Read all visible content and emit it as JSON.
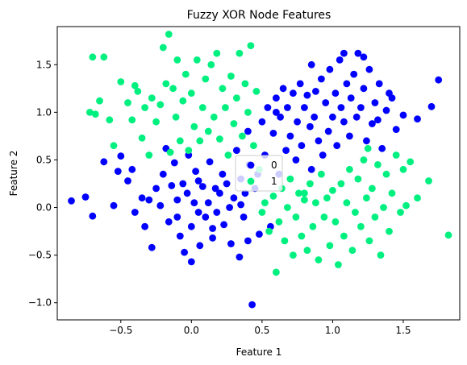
{
  "chart_data": {
    "type": "scatter",
    "title": "Fuzzy XOR Node Features",
    "xlabel": "Feature 1",
    "ylabel": "Feature 2",
    "xlim": [
      -0.95,
      1.9
    ],
    "ylim": [
      -1.18,
      1.9
    ],
    "xticks": [
      -0.5,
      0.0,
      0.5,
      1.0,
      1.5
    ],
    "xtick_labels": [
      "−0.5",
      "0.0",
      "0.5",
      "1.0",
      "1.5"
    ],
    "yticks": [
      -1.0,
      -0.5,
      0.0,
      0.5,
      1.0,
      1.5
    ],
    "ytick_labels": [
      "−1.0",
      "−0.5",
      "0.0",
      "0.5",
      "1.0",
      "1.5"
    ],
    "grid": false,
    "legend_position": "center",
    "series": [
      {
        "name": "0",
        "color": "#0000ff",
        "points": [
          [
            -0.85,
            0.07
          ],
          [
            -0.75,
            0.11
          ],
          [
            -0.7,
            -0.09
          ],
          [
            -0.62,
            0.48
          ],
          [
            -0.55,
            0.02
          ],
          [
            -0.52,
            0.38
          ],
          [
            -0.5,
            0.54
          ],
          [
            -0.45,
            0.28
          ],
          [
            -0.42,
            0.4
          ],
          [
            -0.4,
            -0.05
          ],
          [
            -0.35,
            0.1
          ],
          [
            -0.33,
            -0.2
          ],
          [
            -0.3,
            0.08
          ],
          [
            -0.28,
            -0.42
          ],
          [
            -0.25,
            0.2
          ],
          [
            -0.22,
            0.02
          ],
          [
            -0.2,
            0.35
          ],
          [
            -0.18,
            0.62
          ],
          [
            -0.16,
            -0.15
          ],
          [
            -0.14,
            0.23
          ],
          [
            -0.12,
            0.47
          ],
          [
            -0.1,
            0.08
          ],
          [
            -0.08,
            -0.3
          ],
          [
            -0.06,
            0.25
          ],
          [
            -0.05,
            -0.47
          ],
          [
            -0.03,
            0.15
          ],
          [
            -0.02,
            0.55
          ],
          [
            0.0,
            -0.2
          ],
          [
            0.0,
            -0.57
          ],
          [
            0.02,
            0.05
          ],
          [
            0.03,
            0.38
          ],
          [
            0.05,
            -0.05
          ],
          [
            0.06,
            -0.4
          ],
          [
            0.08,
            0.22
          ],
          [
            0.1,
            -0.1
          ],
          [
            0.12,
            0.05
          ],
          [
            0.13,
            0.48
          ],
          [
            0.15,
            -0.32
          ],
          [
            0.17,
            0.2
          ],
          [
            0.18,
            -0.05
          ],
          [
            0.2,
            0.15
          ],
          [
            0.22,
            0.35
          ],
          [
            0.23,
            -0.18
          ],
          [
            0.25,
            0.25
          ],
          [
            0.27,
            0.0
          ],
          [
            0.28,
            -0.38
          ],
          [
            0.3,
            0.1
          ],
          [
            0.32,
            0.6
          ],
          [
            0.34,
            -0.52
          ],
          [
            0.35,
            0.3
          ],
          [
            0.37,
            -0.1
          ],
          [
            0.38,
            0.15
          ],
          [
            0.4,
            -0.35
          ],
          [
            0.41,
            0.45
          ],
          [
            0.43,
            -1.02
          ],
          [
            0.45,
            0.2
          ],
          [
            0.47,
            0.35
          ],
          [
            0.48,
            -0.28
          ],
          [
            0.5,
            0.9
          ],
          [
            0.52,
            0.55
          ],
          [
            0.54,
            1.05
          ],
          [
            0.56,
            -0.2
          ],
          [
            0.58,
            0.78
          ],
          [
            0.6,
            1.15
          ],
          [
            0.62,
            0.35
          ],
          [
            0.63,
            0.95
          ],
          [
            0.65,
            1.25
          ],
          [
            0.67,
            0.6
          ],
          [
            0.68,
            1.05
          ],
          [
            0.7,
            0.75
          ],
          [
            0.72,
            1.2
          ],
          [
            0.74,
            0.5
          ],
          [
            0.75,
            0.9
          ],
          [
            0.77,
            1.3
          ],
          [
            0.78,
            0.65
          ],
          [
            0.8,
            1.05
          ],
          [
            0.82,
            1.18
          ],
          [
            0.84,
            0.85
          ],
          [
            0.85,
            0.4
          ],
          [
            0.87,
            0.95
          ],
          [
            0.88,
            1.22
          ],
          [
            0.9,
            0.7
          ],
          [
            0.92,
            1.35
          ],
          [
            0.93,
            0.55
          ],
          [
            0.95,
            1.1
          ],
          [
            0.97,
            0.8
          ],
          [
            0.98,
            1.45
          ],
          [
            1.0,
            0.95
          ],
          [
            1.02,
            1.2
          ],
          [
            1.03,
            0.65
          ],
          [
            1.05,
            1.55
          ],
          [
            1.06,
            1.05
          ],
          [
            1.08,
            0.9
          ],
          [
            1.1,
            1.3
          ],
          [
            1.12,
            0.75
          ],
          [
            1.13,
            1.15
          ],
          [
            1.15,
            1.4
          ],
          [
            1.17,
            0.95
          ],
          [
            1.18,
            1.62
          ],
          [
            1.2,
            1.05
          ],
          [
            1.22,
            1.25
          ],
          [
            1.24,
            0.7
          ],
          [
            1.26,
            1.45
          ],
          [
            1.28,
            0.88
          ],
          [
            1.3,
            1.1
          ],
          [
            1.33,
            1.3
          ],
          [
            1.35,
            0.62
          ],
          [
            1.38,
            1.02
          ],
          [
            1.42,
            1.15
          ],
          [
            1.45,
            0.82
          ],
          [
            1.5,
            0.97
          ],
          [
            1.6,
            0.93
          ],
          [
            1.7,
            1.06
          ],
          [
            1.75,
            1.34
          ],
          [
            1.4,
            1.2
          ],
          [
            1.08,
            1.62
          ],
          [
            1.22,
            1.58
          ],
          [
            1.32,
            0.92
          ],
          [
            0.85,
            1.5
          ],
          [
            0.6,
            1.0
          ],
          [
            0.4,
            0.8
          ],
          [
            0.35,
            0.03
          ],
          [
            0.15,
            -0.22
          ],
          [
            -0.1,
            -0.1
          ],
          [
            0.05,
            0.28
          ]
        ]
      },
      {
        "name": "1",
        "color": "#00f080",
        "points": [
          [
            -0.72,
            1.0
          ],
          [
            -0.7,
            1.58
          ],
          [
            -0.68,
            0.98
          ],
          [
            -0.65,
            1.12
          ],
          [
            -0.62,
            1.58
          ],
          [
            -0.58,
            0.92
          ],
          [
            -0.55,
            0.65
          ],
          [
            -0.5,
            1.32
          ],
          [
            -0.45,
            1.1
          ],
          [
            -0.42,
            0.92
          ],
          [
            -0.4,
            1.28
          ],
          [
            -0.38,
            1.22
          ],
          [
            -0.35,
            0.73
          ],
          [
            -0.33,
            1.05
          ],
          [
            -0.3,
            0.55
          ],
          [
            -0.28,
            1.15
          ],
          [
            -0.25,
            0.9
          ],
          [
            -0.22,
            1.08
          ],
          [
            -0.2,
            1.68
          ],
          [
            -0.18,
            1.3
          ],
          [
            -0.16,
            1.82
          ],
          [
            -0.15,
            0.58
          ],
          [
            -0.13,
            1.25
          ],
          [
            -0.11,
            0.95
          ],
          [
            -0.1,
            1.55
          ],
          [
            -0.08,
            0.7
          ],
          [
            -0.06,
            1.12
          ],
          [
            -0.04,
            1.4
          ],
          [
            -0.02,
            0.6
          ],
          [
            0.0,
            1.2
          ],
          [
            0.02,
            0.85
          ],
          [
            0.04,
            1.55
          ],
          [
            0.06,
            0.7
          ],
          [
            0.08,
            1.05
          ],
          [
            0.1,
            1.35
          ],
          [
            0.12,
            0.8
          ],
          [
            0.14,
            1.5
          ],
          [
            0.16,
            0.95
          ],
          [
            0.18,
            1.62
          ],
          [
            0.2,
            0.72
          ],
          [
            0.22,
            1.25
          ],
          [
            0.24,
            1.05
          ],
          [
            0.26,
            0.55
          ],
          [
            0.28,
            1.38
          ],
          [
            0.3,
            0.88
          ],
          [
            0.32,
            1.15
          ],
          [
            0.34,
            1.62
          ],
          [
            0.36,
            0.75
          ],
          [
            0.38,
            1.3
          ],
          [
            0.4,
            1.0
          ],
          [
            0.42,
            1.7
          ],
          [
            0.44,
            0.65
          ],
          [
            0.46,
            1.22
          ],
          [
            0.48,
            0.4
          ],
          [
            0.5,
            -0.05
          ],
          [
            0.52,
            0.05
          ],
          [
            0.55,
            -0.25
          ],
          [
            0.58,
            0.12
          ],
          [
            0.6,
            -0.68
          ],
          [
            0.62,
            -0.15
          ],
          [
            0.64,
            0.2
          ],
          [
            0.66,
            -0.35
          ],
          [
            0.68,
            0.0
          ],
          [
            0.7,
            0.3
          ],
          [
            0.72,
            -0.5
          ],
          [
            0.74,
            -0.1
          ],
          [
            0.76,
            0.15
          ],
          [
            0.78,
            -0.3
          ],
          [
            0.8,
            0.08
          ],
          [
            0.82,
            -0.45
          ],
          [
            0.84,
            0.25
          ],
          [
            0.86,
            -0.2
          ],
          [
            0.88,
            0.05
          ],
          [
            0.9,
            -0.55
          ],
          [
            0.92,
            0.35
          ],
          [
            0.94,
            -0.1
          ],
          [
            0.96,
            0.1
          ],
          [
            0.98,
            -0.4
          ],
          [
            1.0,
            0.18
          ],
          [
            1.02,
            -0.15
          ],
          [
            1.04,
            -0.6
          ],
          [
            1.06,
            0.25
          ],
          [
            1.08,
            -0.3
          ],
          [
            1.1,
            0.05
          ],
          [
            1.12,
            0.4
          ],
          [
            1.14,
            -0.45
          ],
          [
            1.16,
            -0.05
          ],
          [
            1.18,
            0.3
          ],
          [
            1.2,
            -0.2
          ],
          [
            1.22,
            0.5
          ],
          [
            1.24,
            0.1
          ],
          [
            1.26,
            -0.35
          ],
          [
            1.28,
            0.2
          ],
          [
            1.3,
            -0.1
          ],
          [
            1.32,
            0.45
          ],
          [
            1.34,
            -0.5
          ],
          [
            1.36,
            0.0
          ],
          [
            1.38,
            0.35
          ],
          [
            1.4,
            -0.25
          ],
          [
            1.42,
            0.15
          ],
          [
            1.45,
            0.55
          ],
          [
            1.48,
            -0.05
          ],
          [
            1.5,
            0.4
          ],
          [
            1.55,
            0.48
          ],
          [
            1.6,
            0.1
          ],
          [
            1.68,
            0.28
          ],
          [
            1.82,
            -0.29
          ],
          [
            1.52,
            0.02
          ],
          [
            1.25,
            0.62
          ],
          [
            0.8,
            0.15
          ]
        ]
      }
    ]
  }
}
